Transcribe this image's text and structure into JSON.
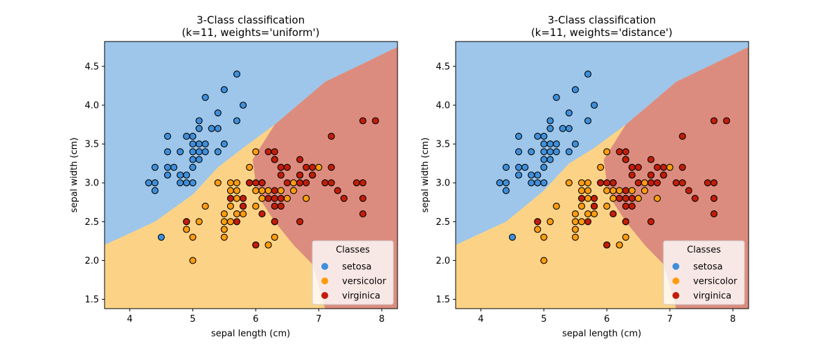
{
  "chart_data": [
    {
      "type": "scatter",
      "title_line1": "3-Class classification",
      "title_line2": "(k=11, weights='uniform')",
      "xlabel": "sepal length (cm)",
      "ylabel": "sepal width (cm)",
      "xlim": [
        3.6,
        8.25
      ],
      "ylim": [
        1.38,
        4.82
      ],
      "xticks": [
        "4",
        "5",
        "6",
        "7",
        "8"
      ],
      "yticks": [
        "1.5",
        "2.0",
        "2.5",
        "3.0",
        "3.5",
        "4.0",
        "4.5"
      ],
      "legend_title": "Classes",
      "legend_position": "lower-right",
      "grid": false,
      "background_regions": {
        "setosa": [
          [
            3.6,
            4.82
          ],
          [
            8.25,
            4.82
          ],
          [
            8.25,
            4.75
          ],
          [
            7.1,
            4.3
          ],
          [
            6.3,
            3.75
          ],
          [
            5.8,
            3.45
          ],
          [
            5.4,
            3.2
          ],
          [
            5.0,
            2.85
          ],
          [
            4.4,
            2.5
          ],
          [
            3.6,
            2.2
          ]
        ],
        "virginica": [
          [
            8.25,
            4.75
          ],
          [
            8.25,
            1.38
          ],
          [
            7.1,
            1.38
          ],
          [
            6.9,
            1.95
          ],
          [
            6.6,
            2.2
          ],
          [
            6.3,
            2.5
          ],
          [
            6.1,
            2.75
          ],
          [
            6.0,
            3.0
          ],
          [
            5.95,
            3.3
          ],
          [
            6.3,
            3.75
          ],
          [
            7.1,
            4.3
          ]
        ]
      }
    },
    {
      "type": "scatter",
      "title_line1": "3-Class classification",
      "title_line2": "(k=11, weights='distance')",
      "xlabel": "sepal length (cm)",
      "ylabel": "sepal width (cm)",
      "xlim": [
        3.6,
        8.25
      ],
      "ylim": [
        1.38,
        4.82
      ],
      "xticks": [
        "4",
        "5",
        "6",
        "7",
        "8"
      ],
      "yticks": [
        "1.5",
        "2.0",
        "2.5",
        "3.0",
        "3.5",
        "4.0",
        "4.5"
      ],
      "legend_title": "Classes",
      "legend_position": "lower-right",
      "grid": false,
      "background_regions": {
        "setosa": [
          [
            3.6,
            4.82
          ],
          [
            8.25,
            4.82
          ],
          [
            8.25,
            4.75
          ],
          [
            7.1,
            4.3
          ],
          [
            6.3,
            3.75
          ],
          [
            5.8,
            3.45
          ],
          [
            5.4,
            3.25
          ],
          [
            5.0,
            2.9
          ],
          [
            4.4,
            2.5
          ],
          [
            3.6,
            2.2
          ]
        ],
        "virginica": [
          [
            8.25,
            4.75
          ],
          [
            8.25,
            1.38
          ],
          [
            7.1,
            1.38
          ],
          [
            6.9,
            1.95
          ],
          [
            6.6,
            2.2
          ],
          [
            6.3,
            2.5
          ],
          [
            6.1,
            2.75
          ],
          [
            6.0,
            3.0
          ],
          [
            5.95,
            3.3
          ],
          [
            6.3,
            3.75
          ],
          [
            7.1,
            4.3
          ]
        ]
      }
    }
  ],
  "classes": [
    {
      "name": "setosa",
      "color": "#3f8fdb",
      "region_color": "#9dc6ea"
    },
    {
      "name": "versicolor",
      "color": "#ff9c10",
      "region_color": "#fcd386"
    },
    {
      "name": "virginica",
      "color": "#c31d0a",
      "region_color": "#dc8c7e"
    }
  ],
  "points": {
    "setosa": [
      [
        4.3,
        3.0
      ],
      [
        4.4,
        2.9
      ],
      [
        4.4,
        3.0
      ],
      [
        4.4,
        3.2
      ],
      [
        4.5,
        2.3
      ],
      [
        4.6,
        3.1
      ],
      [
        4.6,
        3.2
      ],
      [
        4.6,
        3.4
      ],
      [
        4.6,
        3.6
      ],
      [
        4.7,
        3.2
      ],
      [
        4.8,
        3.0
      ],
      [
        4.8,
        3.1
      ],
      [
        4.8,
        3.4
      ],
      [
        4.9,
        3.0
      ],
      [
        4.9,
        3.1
      ],
      [
        4.9,
        3.6
      ],
      [
        5.0,
        3.0
      ],
      [
        5.0,
        3.2
      ],
      [
        5.0,
        3.3
      ],
      [
        5.0,
        3.4
      ],
      [
        5.0,
        3.5
      ],
      [
        5.0,
        3.6
      ],
      [
        5.1,
        3.3
      ],
      [
        5.1,
        3.4
      ],
      [
        5.1,
        3.5
      ],
      [
        5.1,
        3.7
      ],
      [
        5.1,
        3.8
      ],
      [
        5.2,
        3.4
      ],
      [
        5.2,
        3.5
      ],
      [
        5.2,
        4.1
      ],
      [
        5.3,
        3.7
      ],
      [
        5.4,
        3.4
      ],
      [
        5.4,
        3.7
      ],
      [
        5.4,
        3.9
      ],
      [
        5.5,
        3.5
      ],
      [
        5.5,
        4.2
      ],
      [
        5.7,
        3.8
      ],
      [
        5.7,
        4.4
      ],
      [
        5.8,
        4.0
      ]
    ],
    "versicolor": [
      [
        4.9,
        2.4
      ],
      [
        4.9,
        2.5
      ],
      [
        5.0,
        2.0
      ],
      [
        5.0,
        2.3
      ],
      [
        5.1,
        2.5
      ],
      [
        5.2,
        2.7
      ],
      [
        5.4,
        3.0
      ],
      [
        5.5,
        2.3
      ],
      [
        5.5,
        2.4
      ],
      [
        5.5,
        2.5
      ],
      [
        5.5,
        2.6
      ],
      [
        5.6,
        2.5
      ],
      [
        5.6,
        2.7
      ],
      [
        5.6,
        2.9
      ],
      [
        5.6,
        3.0
      ],
      [
        5.7,
        2.6
      ],
      [
        5.7,
        2.8
      ],
      [
        5.7,
        2.9
      ],
      [
        5.7,
        3.0
      ],
      [
        5.8,
        2.6
      ],
      [
        5.8,
        2.7
      ],
      [
        5.9,
        3.0
      ],
      [
        5.9,
        3.2
      ],
      [
        6.0,
        2.2
      ],
      [
        6.0,
        2.7
      ],
      [
        6.0,
        2.9
      ],
      [
        6.0,
        3.4
      ],
      [
        6.1,
        2.8
      ],
      [
        6.1,
        2.9
      ],
      [
        6.1,
        3.0
      ],
      [
        6.2,
        2.2
      ],
      [
        6.2,
        2.9
      ],
      [
        6.3,
        2.3
      ],
      [
        6.3,
        2.5
      ],
      [
        6.3,
        3.3
      ],
      [
        6.4,
        2.9
      ],
      [
        6.4,
        3.2
      ],
      [
        6.5,
        2.8
      ],
      [
        6.6,
        2.9
      ],
      [
        6.6,
        3.0
      ],
      [
        6.7,
        3.0
      ],
      [
        6.7,
        3.1
      ],
      [
        6.8,
        2.8
      ],
      [
        6.9,
        3.1
      ],
      [
        7.0,
        3.2
      ]
    ],
    "virginica": [
      [
        4.9,
        2.5
      ],
      [
        5.6,
        2.8
      ],
      [
        5.7,
        2.5
      ],
      [
        5.8,
        2.7
      ],
      [
        5.8,
        2.8
      ],
      [
        5.9,
        3.0
      ],
      [
        6.0,
        2.2
      ],
      [
        6.0,
        3.0
      ],
      [
        6.1,
        2.6
      ],
      [
        6.1,
        3.0
      ],
      [
        6.2,
        2.8
      ],
      [
        6.2,
        3.4
      ],
      [
        6.3,
        2.5
      ],
      [
        6.3,
        2.7
      ],
      [
        6.3,
        2.8
      ],
      [
        6.3,
        2.9
      ],
      [
        6.3,
        3.3
      ],
      [
        6.3,
        3.4
      ],
      [
        6.4,
        2.7
      ],
      [
        6.4,
        2.8
      ],
      [
        6.4,
        3.1
      ],
      [
        6.4,
        3.2
      ],
      [
        6.5,
        3.0
      ],
      [
        6.5,
        3.2
      ],
      [
        6.7,
        2.5
      ],
      [
        6.7,
        3.0
      ],
      [
        6.7,
        3.1
      ],
      [
        6.7,
        3.3
      ],
      [
        6.8,
        3.0
      ],
      [
        6.8,
        3.2
      ],
      [
        6.9,
        3.1
      ],
      [
        6.9,
        3.2
      ],
      [
        7.1,
        3.0
      ],
      [
        7.2,
        3.0
      ],
      [
        7.2,
        3.2
      ],
      [
        7.2,
        3.6
      ],
      [
        7.3,
        2.9
      ],
      [
        7.4,
        2.8
      ],
      [
        7.6,
        3.0
      ],
      [
        7.7,
        2.6
      ],
      [
        7.7,
        2.8
      ],
      [
        7.7,
        3.0
      ],
      [
        7.7,
        3.8
      ],
      [
        7.9,
        3.8
      ]
    ]
  }
}
